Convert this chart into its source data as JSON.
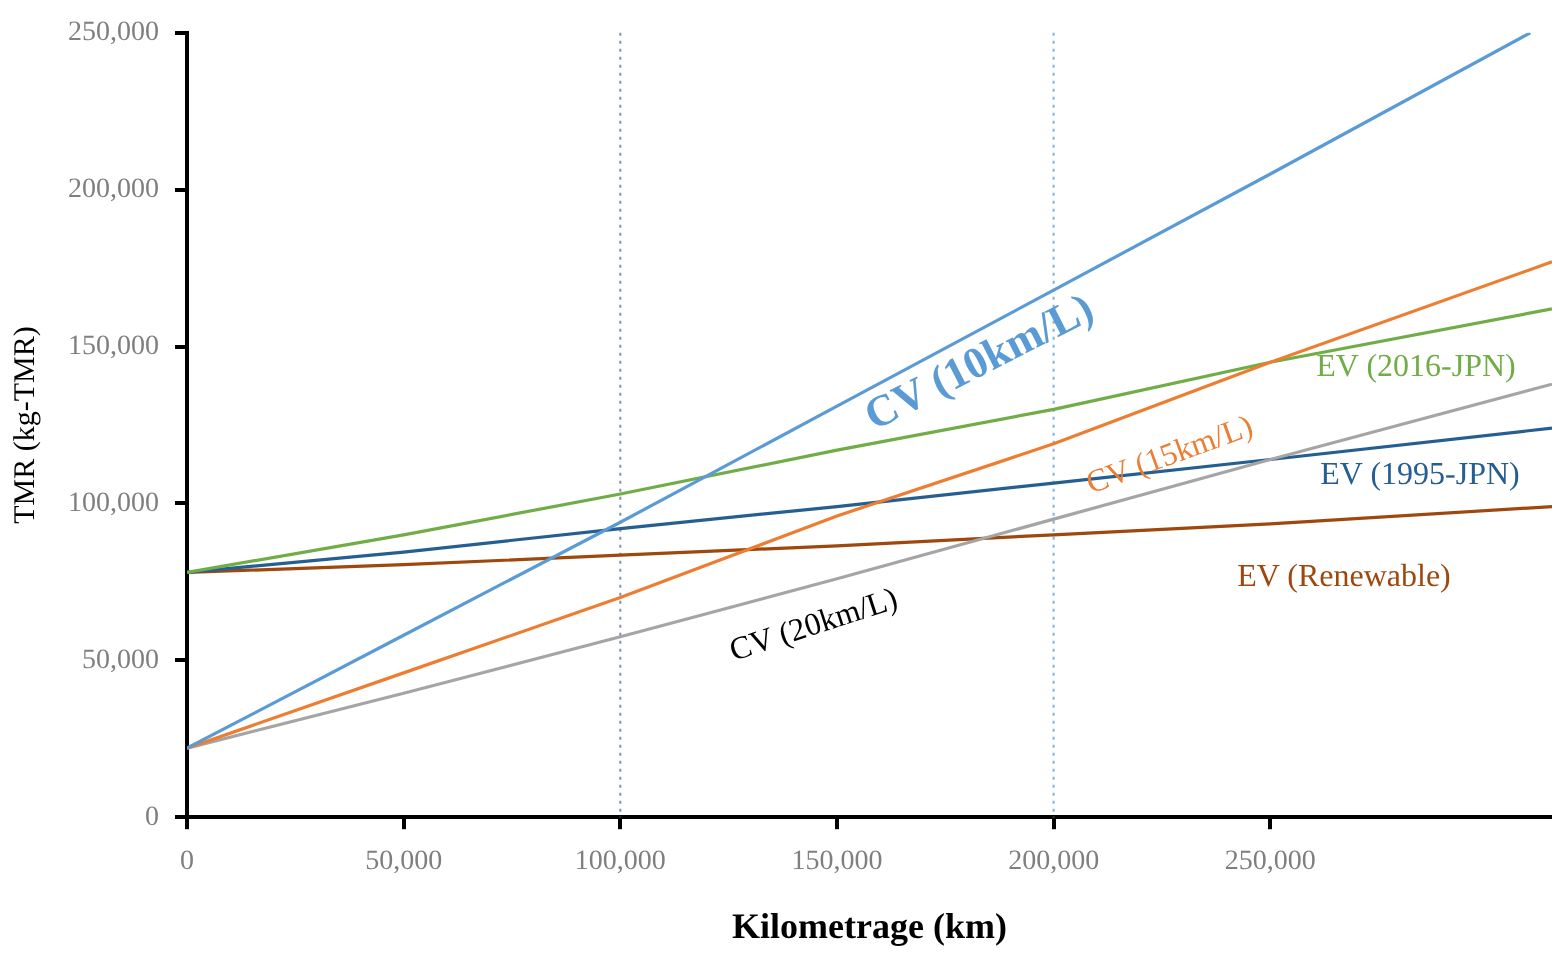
{
  "chart_data": {
    "type": "line",
    "xlabel": "Kilometrage (km)",
    "ylabel": "TMR (kg-TMR)",
    "x": [
      0,
      50000,
      100000,
      150000,
      200000,
      250000,
      315000
    ],
    "xlim": [
      0,
      315000
    ],
    "xticks": [
      0,
      {
        "value": 50000,
        "label": "50,000"
      },
      {
        "value": 100000,
        "label": "100,000"
      },
      {
        "value": 150000,
        "label": "150,000"
      },
      {
        "value": 200000,
        "label": "200,000"
      },
      {
        "value": 250000,
        "label": "250,000"
      }
    ],
    "ylim": [
      0,
      250000
    ],
    "yticks": [
      0,
      {
        "value": 50000,
        "label": "50,000"
      },
      {
        "value": 100000,
        "label": "100,000"
      },
      {
        "value": 150000,
        "label": "150,000"
      },
      {
        "value": 200000,
        "label": "200,000"
      },
      {
        "value": 250000,
        "label": "250,000"
      }
    ],
    "grid": false,
    "legend": false,
    "marker": "none",
    "line_style": "solid",
    "series": [
      {
        "name": "CV (10km/L)",
        "color": "#5b9bd5",
        "x": [
          0,
          50000,
          100000,
          150000,
          200000,
          250000,
          310000
        ],
        "values": [
          22000,
          58000,
          94000,
          131000,
          168000,
          205000,
          250000
        ]
      },
      {
        "name": "CV (15km/L)",
        "color": "#ed7d31",
        "values": [
          22000,
          46000,
          70000,
          96000,
          119000,
          145000,
          177000
        ]
      },
      {
        "name": "CV (20km/L)",
        "color": "#a5a5a5",
        "values": [
          22000,
          39500,
          57500,
          76000,
          95000,
          114000,
          138000
        ]
      },
      {
        "name": "EV (2016-JPN)",
        "color": "#70ad47",
        "values": [
          78000,
          90000,
          103000,
          117000,
          130000,
          145000,
          162000
        ]
      },
      {
        "name": "EV (1995-JPN)",
        "color": "#255e91",
        "values": [
          78000,
          84500,
          92000,
          99000,
          106500,
          114000,
          124000
        ]
      },
      {
        "name": "EV (Renewable)",
        "color": "#9e480e",
        "values": [
          78000,
          80500,
          83500,
          86500,
          90000,
          93500,
          99000
        ]
      }
    ],
    "ref_lines": [
      {
        "axis": "x",
        "value": 100000,
        "color": "#7f8fa6",
        "line_style": "dotted"
      },
      {
        "axis": "x",
        "value": 200000,
        "color": "#7fb0e0",
        "line_style": "dotted"
      }
    ]
  }
}
